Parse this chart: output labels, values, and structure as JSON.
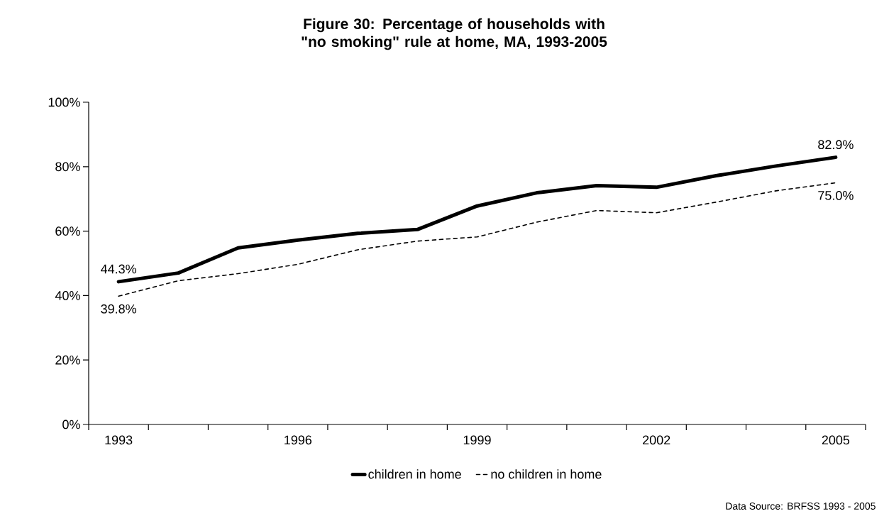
{
  "chart_data": {
    "type": "line",
    "title": "Figure 30:  Percentage of households with \"no smoking\" rule at home, MA, 1993-2005",
    "categories": [
      "1993",
      null,
      null,
      "1996",
      null,
      null,
      "1999",
      null,
      null,
      "2002",
      null,
      null,
      "2005"
    ],
    "series": [
      {
        "name": "children in home",
        "color": "#000000",
        "line_style": "solid",
        "values": [
          44.3,
          47.0,
          54.8,
          57.2,
          59.3,
          60.5,
          67.8,
          71.9,
          74.1,
          73.6,
          77.2,
          80.2,
          82.9
        ],
        "value_labels": [
          "44.3%",
          null,
          null,
          null,
          null,
          null,
          null,
          null,
          null,
          null,
          null,
          null,
          "82.9%"
        ]
      },
      {
        "name": "no children in home",
        "color": "#000000",
        "line_style": "dashed",
        "values": [
          39.8,
          44.6,
          46.8,
          49.7,
          54.2,
          56.9,
          58.2,
          62.8,
          66.4,
          65.7,
          69.0,
          72.5,
          75.0
        ],
        "value_labels": [
          "39.8%",
          null,
          null,
          null,
          null,
          null,
          null,
          null,
          null,
          null,
          null,
          null,
          "75.0%"
        ]
      }
    ],
    "ylim": [
      0,
      100
    ],
    "yticks": [
      {
        "value": 0,
        "label": "0%"
      },
      {
        "value": 20,
        "label": "20%"
      },
      {
        "value": 40,
        "label": "40%"
      },
      {
        "value": 60,
        "label": "60%"
      },
      {
        "value": 80,
        "label": "80%"
      },
      {
        "value": 100,
        "label": "100%"
      }
    ],
    "grid": false,
    "legend": "bottom",
    "marker": "none",
    "annotations": [
      "Data Source: BRFSS 1993 - 2005"
    ]
  }
}
